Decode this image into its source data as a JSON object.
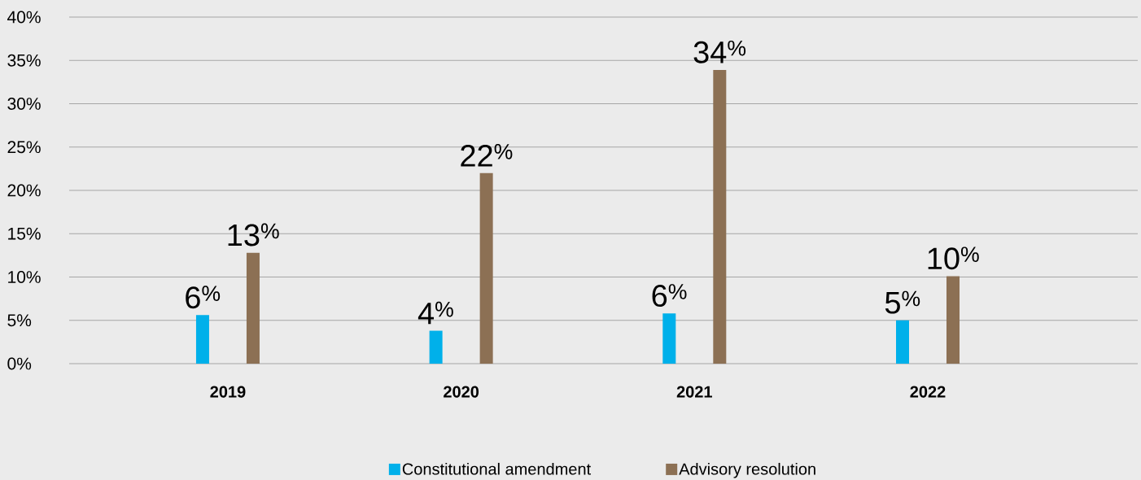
{
  "chart_data": {
    "type": "bar",
    "categories": [
      "2019",
      "2020",
      "2021",
      "2022"
    ],
    "series": [
      {
        "name": "Constitutional amendment",
        "color": "#00b0ea",
        "values": [
          5.6,
          3.8,
          5.8,
          5.0
        ],
        "value_labels": [
          "6$^{%}$",
          "4$^{%}$",
          "6$^{%}$",
          "5$^{%}$"
        ]
      },
      {
        "name": "Advisory resolution",
        "color": "#8c7054",
        "values": [
          12.8,
          22.0,
          33.9,
          10.1
        ],
        "value_labels": [
          "13$^{%}$",
          "22$^{%}$",
          "34$^{%}$",
          "10$^{%}$"
        ]
      }
    ],
    "ylim": [
      0,
      40
    ],
    "yticks": [
      {
        "value": 0,
        "label": "0%"
      },
      {
        "value": 5,
        "label": "5%"
      },
      {
        "value": 10,
        "label": "10%"
      },
      {
        "value": 15,
        "label": "15%"
      },
      {
        "value": 20,
        "label": "20%"
      },
      {
        "value": 25,
        "label": "25%"
      },
      {
        "value": 30,
        "label": "30%"
      },
      {
        "value": 35,
        "label": "35%"
      },
      {
        "value": 40,
        "label": "40%"
      }
    ],
    "grid": "y",
    "legend": "bottom"
  }
}
